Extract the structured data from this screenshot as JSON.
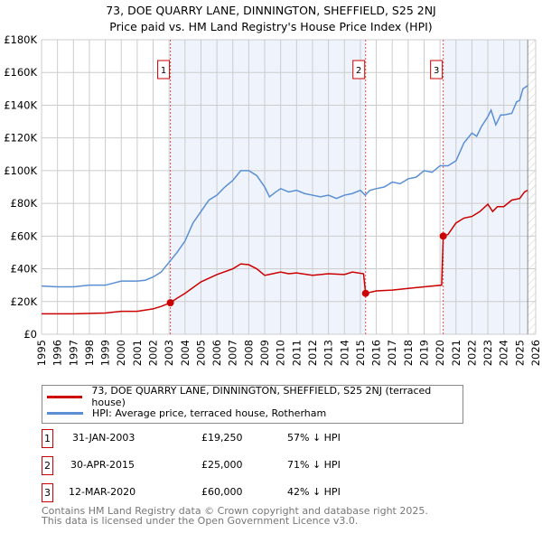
{
  "title": "73, DOE QUARRY LANE, DINNINGTON, SHEFFIELD, S25 2NJ",
  "subtitle": "Price paid vs. HM Land Registry's House Price Index (HPI)",
  "chart_data": {
    "type": "line",
    "title": "73, DOE QUARRY LANE, DINNINGTON, SHEFFIELD, S25 2NJ",
    "subtitle": "Price paid vs. HM Land Registry's House Price Index (HPI)",
    "xlim": [
      1995,
      2026
    ],
    "ylim": [
      0,
      180000
    ],
    "yticks": [
      {
        "v": 0,
        "label": "£0"
      },
      {
        "v": 20000,
        "label": "£20K"
      },
      {
        "v": 40000,
        "label": "£40K"
      },
      {
        "v": 60000,
        "label": "£60K"
      },
      {
        "v": 80000,
        "label": "£80K"
      },
      {
        "v": 100000,
        "label": "£100K"
      },
      {
        "v": 120000,
        "label": "£120K"
      },
      {
        "v": 140000,
        "label": "£140K"
      },
      {
        "v": 160000,
        "label": "£160K"
      },
      {
        "v": 180000,
        "label": "£180K"
      }
    ],
    "xticks": [
      "1995",
      "1996",
      "1997",
      "1998",
      "1999",
      "2000",
      "2001",
      "2002",
      "2003",
      "2004",
      "2005",
      "2006",
      "2007",
      "2008",
      "2009",
      "2010",
      "2011",
      "2012",
      "2013",
      "2014",
      "2015",
      "2016",
      "2017",
      "2018",
      "2019",
      "2020",
      "2021",
      "2022",
      "2023",
      "2024",
      "2025",
      "2026"
    ],
    "grid": true,
    "shaded_ranges": [
      [
        2003.08,
        2015.33
      ],
      [
        2020.2,
        2025.5
      ]
    ],
    "hatched_from": 2025.5,
    "series": [
      {
        "name": "73, DOE QUARRY LANE, DINNINGTON, SHEFFIELD, S25 2NJ (terraced house)",
        "color": "#cc0000",
        "points": [
          [
            1995,
            12500
          ],
          [
            1997,
            12500
          ],
          [
            1999,
            13000
          ],
          [
            2000,
            14000
          ],
          [
            2001,
            14000
          ],
          [
            2002,
            15500
          ],
          [
            2002.5,
            17000
          ],
          [
            2003.08,
            19250
          ],
          [
            2003.5,
            22000
          ],
          [
            2004,
            25000
          ],
          [
            2005,
            32000
          ],
          [
            2006,
            36500
          ],
          [
            2007,
            40000
          ],
          [
            2007.5,
            43000
          ],
          [
            2008,
            42500
          ],
          [
            2008.5,
            40000
          ],
          [
            2009,
            36000
          ],
          [
            2009.5,
            37000
          ],
          [
            2010,
            38000
          ],
          [
            2010.5,
            37000
          ],
          [
            2011,
            37500
          ],
          [
            2012,
            36000
          ],
          [
            2013,
            37000
          ],
          [
            2014,
            36500
          ],
          [
            2014.5,
            38000
          ],
          [
            2015.2,
            37000
          ],
          [
            2015.33,
            25000
          ],
          [
            2016,
            26500
          ],
          [
            2017,
            27000
          ],
          [
            2018,
            28000
          ],
          [
            2019,
            29000
          ],
          [
            2020.1,
            30000
          ],
          [
            2020.2,
            60000
          ],
          [
            2020.5,
            61000
          ],
          [
            2021,
            68000
          ],
          [
            2021.5,
            71000
          ],
          [
            2022,
            72000
          ],
          [
            2022.5,
            75000
          ],
          [
            2023,
            79500
          ],
          [
            2023.3,
            75000
          ],
          [
            2023.6,
            78000
          ],
          [
            2024,
            78000
          ],
          [
            2024.5,
            82000
          ],
          [
            2025,
            83000
          ],
          [
            2025.3,
            87000
          ],
          [
            2025.5,
            88000
          ]
        ]
      },
      {
        "name": "HPI: Average price, terraced house, Rotherham",
        "color": "#5b8fd4",
        "points": [
          [
            1995,
            29500
          ],
          [
            1996,
            29000
          ],
          [
            1997,
            29000
          ],
          [
            1998,
            30000
          ],
          [
            1999,
            30000
          ],
          [
            2000,
            32500
          ],
          [
            2001,
            32500
          ],
          [
            2001.5,
            33000
          ],
          [
            2002,
            35000
          ],
          [
            2002.5,
            38000
          ],
          [
            2003,
            44000
          ],
          [
            2003.5,
            50000
          ],
          [
            2004,
            57000
          ],
          [
            2004.5,
            68000
          ],
          [
            2005,
            75000
          ],
          [
            2005.5,
            82000
          ],
          [
            2006,
            85000
          ],
          [
            2006.5,
            90000
          ],
          [
            2007,
            94000
          ],
          [
            2007.5,
            100000
          ],
          [
            2008,
            100000
          ],
          [
            2008.5,
            97000
          ],
          [
            2009,
            90000
          ],
          [
            2009.3,
            84000
          ],
          [
            2009.7,
            87000
          ],
          [
            2010,
            89000
          ],
          [
            2010.5,
            87000
          ],
          [
            2011,
            88000
          ],
          [
            2011.5,
            86000
          ],
          [
            2012,
            85000
          ],
          [
            2012.5,
            84000
          ],
          [
            2013,
            85000
          ],
          [
            2013.5,
            83000
          ],
          [
            2014,
            85000
          ],
          [
            2014.5,
            86000
          ],
          [
            2015,
            88000
          ],
          [
            2015.3,
            85000
          ],
          [
            2015.6,
            88000
          ],
          [
            2016,
            89000
          ],
          [
            2016.5,
            90000
          ],
          [
            2017,
            93000
          ],
          [
            2017.5,
            92000
          ],
          [
            2018,
            95000
          ],
          [
            2018.5,
            96000
          ],
          [
            2019,
            100000
          ],
          [
            2019.5,
            99000
          ],
          [
            2020,
            103000
          ],
          [
            2020.5,
            103000
          ],
          [
            2021,
            106000
          ],
          [
            2021.5,
            117000
          ],
          [
            2022,
            123000
          ],
          [
            2022.3,
            121000
          ],
          [
            2022.6,
            127000
          ],
          [
            2023,
            133000
          ],
          [
            2023.2,
            137000
          ],
          [
            2023.5,
            128000
          ],
          [
            2023.8,
            134000
          ],
          [
            2024,
            134000
          ],
          [
            2024.5,
            135000
          ],
          [
            2024.8,
            142000
          ],
          [
            2025,
            143000
          ],
          [
            2025.2,
            150000
          ],
          [
            2025.5,
            152000
          ]
        ]
      }
    ],
    "sales": [
      {
        "n": "1",
        "x": 2003.08,
        "y": 19250
      },
      {
        "n": "2",
        "x": 2015.33,
        "y": 25000
      },
      {
        "n": "3",
        "x": 2020.2,
        "y": 60000
      }
    ]
  },
  "legend": [
    "73, DOE QUARRY LANE, DINNINGTON, SHEFFIELD, S25 2NJ (terraced house)",
    "HPI: Average price, terraced house, Rotherham"
  ],
  "table": [
    {
      "n": "1",
      "date": "31-JAN-2003",
      "price": "£19,250",
      "hpi": "57% ↓ HPI"
    },
    {
      "n": "2",
      "date": "30-APR-2015",
      "price": "£25,000",
      "hpi": "71% ↓ HPI"
    },
    {
      "n": "3",
      "date": "12-MAR-2020",
      "price": "£60,000",
      "hpi": "42% ↓ HPI"
    }
  ],
  "footer": [
    "Contains HM Land Registry data © Crown copyright and database right 2025.",
    "This data is licensed under the Open Government Licence v3.0."
  ]
}
